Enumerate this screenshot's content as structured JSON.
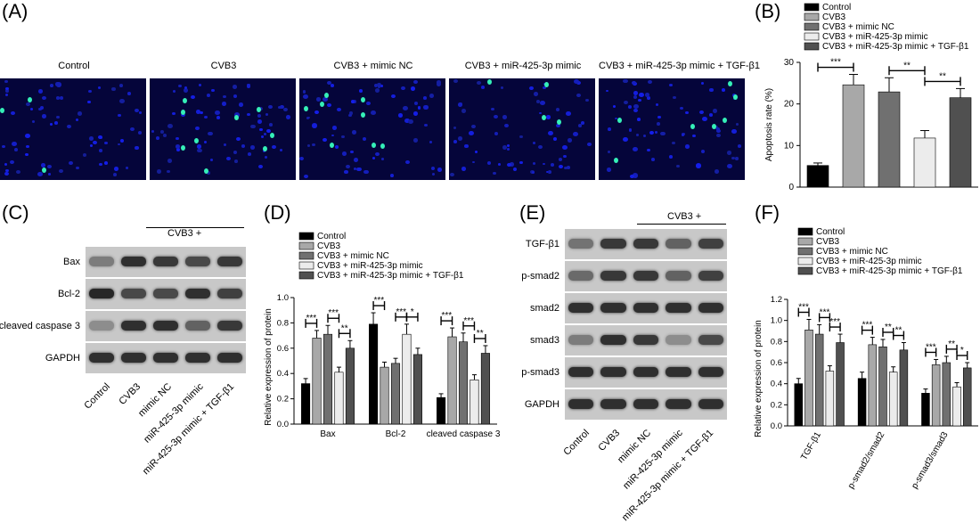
{
  "panels": {
    "a": "(A)",
    "b": "(B)",
    "c": "(C)",
    "d": "(D)",
    "e": "(E)",
    "f": "(F)"
  },
  "groups": [
    "Control",
    "CVB3",
    "CVB3 + mimic NC",
    "CVB3 + miR-425-3p mimic",
    "CVB3 + miR-425-3p mimic + TGF-β1"
  ],
  "lane_labels": [
    "Control",
    "CVB3",
    "mimic NC",
    "miR-425-3p mimic",
    "miR-425-3p mimic + TGF-β1"
  ],
  "cvb3_bracket": "CVB3 +",
  "blot_c": {
    "rows": [
      "Bax",
      "Bcl-2",
      "cleaved caspase 3",
      "GAPDH"
    ]
  },
  "blot_e": {
    "rows": [
      "TGF-β1",
      "p-smad2",
      "smad2",
      "smad3",
      "p-smad3",
      "GAPDH"
    ]
  },
  "colors": [
    "#000000",
    "#a8a8a8",
    "#707070",
    "#ececec",
    "#505050"
  ],
  "chart_data": [
    {
      "panel": "B",
      "type": "bar",
      "ylabel": "Apoptosis rate (%)",
      "ylim": [
        0,
        30
      ],
      "yticks": [
        0,
        10,
        20,
        30
      ],
      "series": [
        {
          "name": "Control",
          "values": [
            5.2
          ],
          "err": [
            0.6
          ]
        },
        {
          "name": "CVB3",
          "values": [
            24.6
          ],
          "err": [
            2.5
          ]
        },
        {
          "name": "CVB3 + mimic NC",
          "values": [
            22.9
          ],
          "err": [
            3.4
          ]
        },
        {
          "name": "CVB3 + miR-425-3p mimic",
          "values": [
            11.8
          ],
          "err": [
            1.8
          ]
        },
        {
          "name": "CVB3 + miR-425-3p mimic + TGF-β1",
          "values": [
            21.5
          ],
          "err": [
            2.2
          ]
        }
      ],
      "significance": [
        {
          "from": 0,
          "to": 1,
          "label": "***"
        },
        {
          "from": 2,
          "to": 3,
          "label": "**"
        },
        {
          "from": 3,
          "to": 4,
          "label": "**"
        }
      ]
    },
    {
      "panel": "D",
      "type": "bar",
      "ylabel": "Relative expression of protein",
      "categories": [
        "Bax",
        "Bcl-2",
        "cleaved caspase 3"
      ],
      "ylim": [
        0,
        1.0
      ],
      "yticks": [
        "0.0",
        "0.2",
        "0.4",
        "0.6",
        "0.8",
        "1.0"
      ],
      "series": [
        {
          "name": "Control",
          "values": [
            0.32,
            0.79,
            0.21
          ],
          "err": [
            0.04,
            0.09,
            0.03
          ]
        },
        {
          "name": "CVB3",
          "values": [
            0.68,
            0.45,
            0.69
          ],
          "err": [
            0.06,
            0.04,
            0.07
          ]
        },
        {
          "name": "CVB3 + mimic NC",
          "values": [
            0.71,
            0.48,
            0.65
          ],
          "err": [
            0.07,
            0.04,
            0.07
          ]
        },
        {
          "name": "CVB3 + miR-425-3p mimic",
          "values": [
            0.41,
            0.71,
            0.35
          ],
          "err": [
            0.04,
            0.08,
            0.04
          ]
        },
        {
          "name": "CVB3 + miR-425-3p mimic + TGF-β1",
          "values": [
            0.6,
            0.55,
            0.56
          ],
          "err": [
            0.06,
            0.05,
            0.06
          ]
        }
      ],
      "significance": [
        {
          "cat": 0,
          "from": 0,
          "to": 1,
          "label": "***"
        },
        {
          "cat": 0,
          "from": 2,
          "to": 3,
          "label": "***"
        },
        {
          "cat": 0,
          "from": 3,
          "to": 4,
          "label": "**"
        },
        {
          "cat": 1,
          "from": 0,
          "to": 1,
          "label": "***"
        },
        {
          "cat": 1,
          "from": 2,
          "to": 3,
          "label": "***"
        },
        {
          "cat": 1,
          "from": 3,
          "to": 4,
          "label": "*"
        },
        {
          "cat": 2,
          "from": 0,
          "to": 1,
          "label": "***"
        },
        {
          "cat": 2,
          "from": 2,
          "to": 3,
          "label": "***"
        },
        {
          "cat": 2,
          "from": 3,
          "to": 4,
          "label": "**"
        }
      ]
    },
    {
      "panel": "F",
      "type": "bar",
      "ylabel": "Relative expression of protein",
      "categories": [
        "TGF-β1",
        "p-smad2/smad2",
        "p-smad3/smad3"
      ],
      "ylim": [
        0,
        1.2
      ],
      "yticks": [
        "0.0",
        "0.2",
        "0.4",
        "0.6",
        "0.8",
        "1.0",
        "1.2"
      ],
      "series": [
        {
          "name": "Control",
          "values": [
            0.4,
            0.45,
            0.31
          ],
          "err": [
            0.05,
            0.06,
            0.04
          ]
        },
        {
          "name": "CVB3",
          "values": [
            0.91,
            0.77,
            0.58
          ],
          "err": [
            0.1,
            0.07,
            0.05
          ]
        },
        {
          "name": "CVB3 + mimic NC",
          "values": [
            0.87,
            0.75,
            0.6
          ],
          "err": [
            0.09,
            0.07,
            0.06
          ]
        },
        {
          "name": "CVB3 + miR-425-3p mimic",
          "values": [
            0.52,
            0.51,
            0.37
          ],
          "err": [
            0.05,
            0.05,
            0.04
          ]
        },
        {
          "name": "CVB3 + miR-425-3p mimic + TGF-β1",
          "values": [
            0.79,
            0.72,
            0.55
          ],
          "err": [
            0.08,
            0.07,
            0.05
          ]
        }
      ],
      "significance": [
        {
          "cat": 0,
          "from": 0,
          "to": 1,
          "label": "***"
        },
        {
          "cat": 0,
          "from": 2,
          "to": 3,
          "label": "***"
        },
        {
          "cat": 0,
          "from": 3,
          "to": 4,
          "label": "***"
        },
        {
          "cat": 1,
          "from": 0,
          "to": 1,
          "label": "***"
        },
        {
          "cat": 1,
          "from": 2,
          "to": 3,
          "label": "**"
        },
        {
          "cat": 1,
          "from": 3,
          "to": 4,
          "label": "**"
        },
        {
          "cat": 2,
          "from": 0,
          "to": 1,
          "label": "***"
        },
        {
          "cat": 2,
          "from": 2,
          "to": 3,
          "label": "**"
        },
        {
          "cat": 2,
          "from": 3,
          "to": 4,
          "label": "*"
        }
      ]
    }
  ]
}
